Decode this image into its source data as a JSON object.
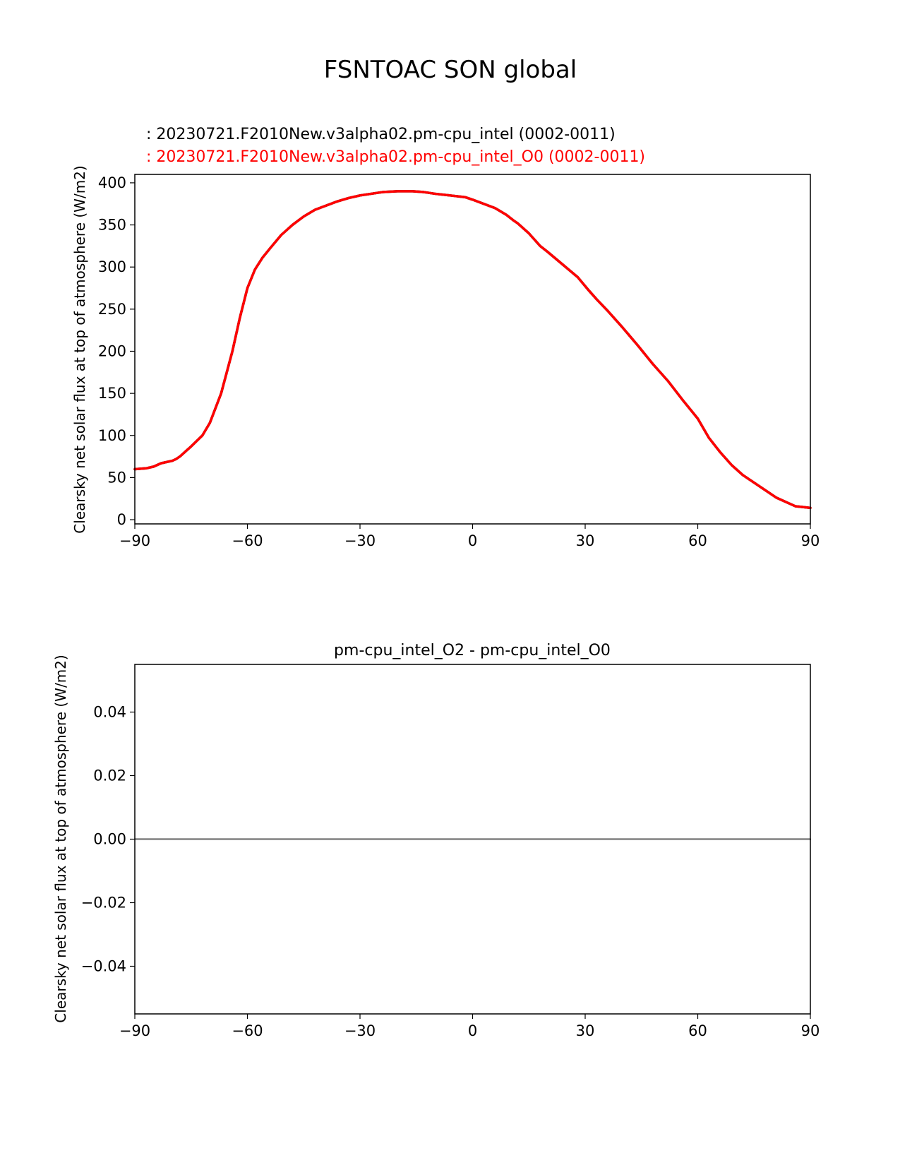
{
  "figure": {
    "title": "FSNTOAC SON global"
  },
  "chart_data": [
    {
      "type": "line",
      "legend_labels": [
        ": 20230721.F2010New.v3alpha02.pm-cpu_intel (0002-0011)",
        ": 20230721.F2010New.v3alpha02.pm-cpu_intel_O0 (0002-0011)"
      ],
      "ylabel": "Clearsky net solar flux at top of atmosphere (W/m2)",
      "xlim": [
        -90,
        90
      ],
      "ylim": [
        -5,
        410
      ],
      "xticks": [
        -90,
        -60,
        -30,
        0,
        30,
        60,
        90
      ],
      "xtick_labels": [
        "−90",
        "−60",
        "−30",
        "0",
        "30",
        "60",
        "90"
      ],
      "yticks": [
        0,
        50,
        100,
        150,
        200,
        250,
        300,
        350,
        400
      ],
      "ytick_labels": [
        "0",
        "50",
        "100",
        "150",
        "200",
        "250",
        "300",
        "350",
        "400"
      ],
      "grid": false,
      "series": [
        {
          "color": "#000000",
          "x": [
            -90,
            -87,
            -85,
            -83,
            -80,
            -79,
            -78,
            -75,
            -72,
            -70,
            -67,
            -64,
            -62,
            -60,
            -58,
            -56,
            -54,
            -51,
            -48,
            -45,
            -42,
            -39,
            -36,
            -33,
            -30,
            -27,
            -24,
            -20,
            -16,
            -13,
            -10,
            -6,
            -2,
            0,
            3,
            6,
            9,
            11,
            12,
            15,
            18,
            20,
            24,
            28,
            31,
            33,
            36,
            40,
            44,
            48,
            52,
            56,
            60,
            63,
            66,
            69,
            72,
            75,
            78,
            81,
            84,
            86,
            88,
            90
          ],
          "y": [
            60,
            61,
            63,
            67,
            70,
            72,
            75,
            87,
            100,
            115,
            150,
            200,
            240,
            275,
            297,
            311,
            322,
            338,
            350,
            360,
            368,
            373,
            378,
            382,
            385,
            387,
            389,
            390,
            390,
            389,
            387,
            385,
            383,
            380,
            375,
            370,
            362,
            355,
            352,
            340,
            325,
            318,
            303,
            288,
            272,
            262,
            248,
            228,
            207,
            185,
            165,
            142,
            120,
            97,
            80,
            65,
            53,
            44,
            35,
            26,
            20,
            16,
            15,
            14
          ]
        },
        {
          "color": "#ff0000",
          "x": [
            -90,
            -87,
            -85,
            -83,
            -80,
            -79,
            -78,
            -75,
            -72,
            -70,
            -67,
            -64,
            -62,
            -60,
            -58,
            -56,
            -54,
            -51,
            -48,
            -45,
            -42,
            -39,
            -36,
            -33,
            -30,
            -27,
            -24,
            -20,
            -16,
            -13,
            -10,
            -6,
            -2,
            0,
            3,
            6,
            9,
            11,
            12,
            15,
            18,
            20,
            24,
            28,
            31,
            33,
            36,
            40,
            44,
            48,
            52,
            56,
            60,
            63,
            66,
            69,
            72,
            75,
            78,
            81,
            84,
            86,
            88,
            90
          ],
          "y": [
            60,
            61,
            63,
            67,
            70,
            72,
            75,
            87,
            100,
            115,
            150,
            200,
            240,
            275,
            297,
            311,
            322,
            338,
            350,
            360,
            368,
            373,
            378,
            382,
            385,
            387,
            389,
            390,
            390,
            389,
            387,
            385,
            383,
            380,
            375,
            370,
            362,
            355,
            352,
            340,
            325,
            318,
            303,
            288,
            272,
            262,
            248,
            228,
            207,
            185,
            165,
            142,
            120,
            97,
            80,
            65,
            53,
            44,
            35,
            26,
            20,
            16,
            15,
            14
          ]
        }
      ]
    },
    {
      "type": "line",
      "title": "pm-cpu_intel_O2 - pm-cpu_intel_O0",
      "ylabel": "Clearsky net solar flux at top of atmosphere (W/m2)",
      "xlim": [
        -90,
        90
      ],
      "ylim": [
        -0.055,
        0.055
      ],
      "xticks": [
        -90,
        -60,
        -30,
        0,
        30,
        60,
        90
      ],
      "xtick_labels": [
        "−90",
        "−60",
        "−30",
        "0",
        "30",
        "60",
        "90"
      ],
      "yticks": [
        -0.04,
        -0.02,
        0.0,
        0.02,
        0.04
      ],
      "ytick_labels": [
        "−0.04",
        "−0.02",
        "0.00",
        "0.02",
        "0.04"
      ],
      "grid": false,
      "series": [
        {
          "color": "#000000",
          "x": [
            -90,
            90
          ],
          "y": [
            0,
            0
          ]
        },
        {
          "color": "#808080",
          "x": [
            -90,
            90
          ],
          "y": [
            0,
            0
          ]
        }
      ]
    }
  ]
}
